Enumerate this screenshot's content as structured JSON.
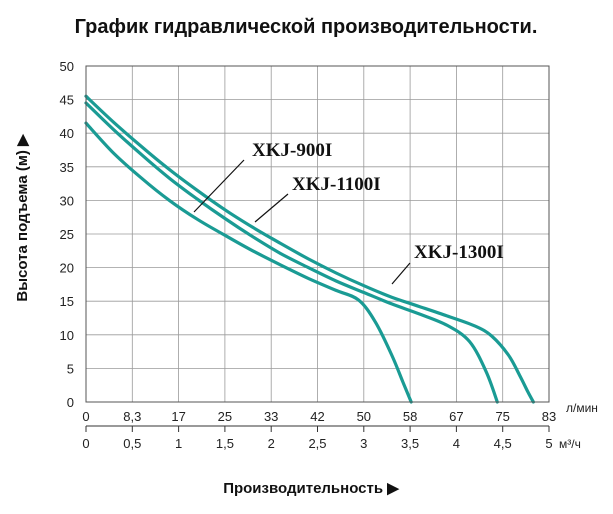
{
  "chart_data": {
    "type": "line",
    "title": "График гидравлической производительности.",
    "ylabel": "Высота подъема (м) ▶",
    "xlabel": "Производительность ▶",
    "ylim": [
      0,
      50
    ],
    "yticks": [
      "0",
      "5",
      "10",
      "15",
      "20",
      "25",
      "30",
      "35",
      "40",
      "45",
      "50"
    ],
    "x_axis_primary": {
      "unit": "л/мин",
      "ticks": [
        "0",
        "8,3",
        "17",
        "25",
        "33",
        "42",
        "50",
        "58",
        "67",
        "75",
        "83"
      ]
    },
    "x_axis_secondary": {
      "unit": "м³/ч",
      "ticks": [
        "0",
        "0,5",
        "1",
        "1,5",
        "2",
        "2,5",
        "3",
        "3,5",
        "4",
        "4,5",
        "5"
      ]
    },
    "grid": true,
    "colors": {
      "series": "#1a9b94",
      "grid": "#9a9a9a",
      "frame": "#555555"
    },
    "series": [
      {
        "name": "XKJ-900I",
        "points": [
          [
            0,
            41.5
          ],
          [
            5,
            37
          ],
          [
            10,
            33.3
          ],
          [
            15,
            30
          ],
          [
            20,
            27.2
          ],
          [
            25,
            24.8
          ],
          [
            30,
            22.5
          ],
          [
            35,
            20.4
          ],
          [
            40,
            18.4
          ],
          [
            45,
            16.6
          ],
          [
            49,
            15.2
          ],
          [
            52,
            12
          ],
          [
            55,
            7
          ],
          [
            57,
            3
          ],
          [
            58.5,
            0
          ]
        ]
      },
      {
        "name": "XKJ-1100I",
        "points": [
          [
            0,
            44.5
          ],
          [
            5,
            40.5
          ],
          [
            10,
            36.8
          ],
          [
            15,
            33.3
          ],
          [
            20,
            30.2
          ],
          [
            25,
            27.3
          ],
          [
            30,
            24.6
          ],
          [
            35,
            22.1
          ],
          [
            40,
            20
          ],
          [
            45,
            18
          ],
          [
            50,
            16.3
          ],
          [
            55,
            14.6
          ],
          [
            60,
            13.1
          ],
          [
            65,
            11.4
          ],
          [
            69,
            9
          ],
          [
            72,
            4.5
          ],
          [
            74,
            0
          ]
        ]
      },
      {
        "name": "XKJ-1300I",
        "points": [
          [
            0,
            45.5
          ],
          [
            5,
            41.6
          ],
          [
            10,
            38
          ],
          [
            15,
            34.6
          ],
          [
            20,
            31.5
          ],
          [
            25,
            28.6
          ],
          [
            30,
            26
          ],
          [
            35,
            23.6
          ],
          [
            40,
            21.3
          ],
          [
            45,
            19.2
          ],
          [
            50,
            17.3
          ],
          [
            55,
            15.6
          ],
          [
            60,
            14.2
          ],
          [
            65,
            12.8
          ],
          [
            70,
            11.3
          ],
          [
            73,
            9.8
          ],
          [
            76,
            7
          ],
          [
            78,
            4
          ],
          [
            79.5,
            1.5
          ],
          [
            80.5,
            0
          ]
        ]
      }
    ]
  }
}
